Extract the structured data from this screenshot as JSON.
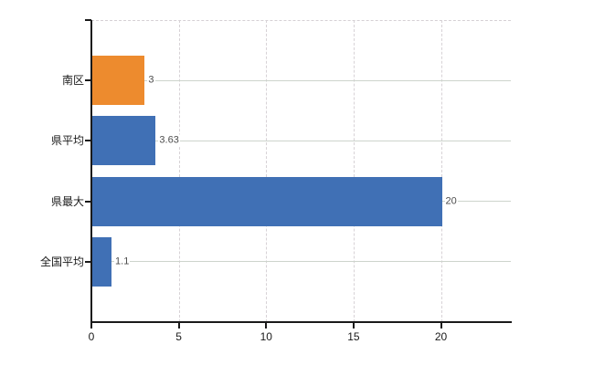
{
  "chart_data": {
    "type": "bar",
    "orientation": "horizontal",
    "title": "",
    "xlabel": "",
    "ylabel": "",
    "categories": [
      "南区",
      "県平均",
      "県最大",
      "全国平均"
    ],
    "series": [
      {
        "name": "",
        "values": [
          3,
          3.63,
          20,
          1.1
        ]
      }
    ],
    "value_labels": [
      "3",
      "3.63",
      "20",
      "1.1"
    ],
    "bar_colors": [
      "#ED8B2E",
      "#4070B5",
      "#4070B5",
      "#4070B5"
    ],
    "xlim": [
      0,
      24
    ],
    "xtick_labels": [
      "0",
      "5",
      "10",
      "15",
      "20"
    ],
    "xtick_values": [
      0,
      5,
      10,
      15,
      20
    ],
    "grid": {
      "horizontal": "solid",
      "vertical": "dashed",
      "plot_top_border": "dashed"
    },
    "legend": "none"
  },
  "style": {
    "background": "#ffffff",
    "axis_color": "#1a1a1a",
    "grid_solid_color": "#cdd4cc",
    "grid_dashed_color": "#d7d2d6",
    "value_label_color": "#4d4d4d",
    "tick_label_color": "#1a1a1a",
    "bar_orange": "#ED8B2E",
    "bar_blue": "#4070B5"
  }
}
